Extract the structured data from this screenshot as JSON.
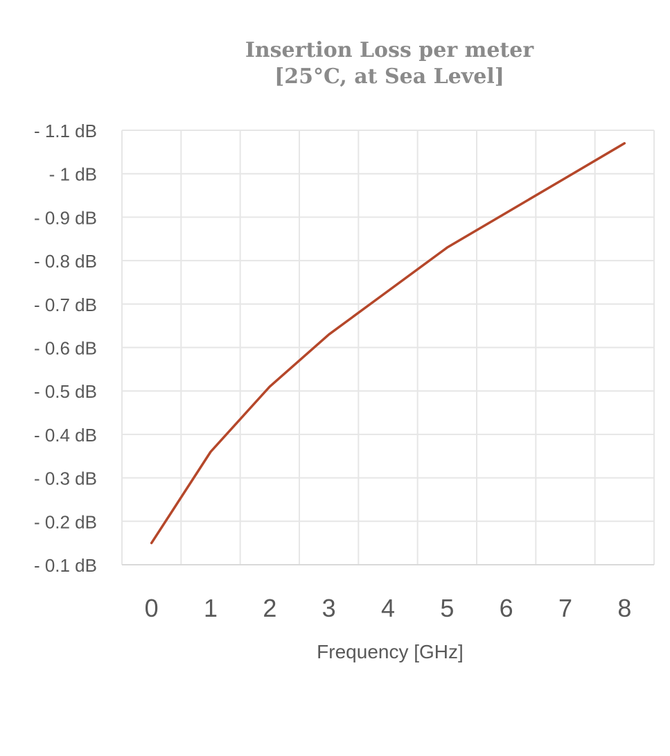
{
  "chart_data": {
    "type": "line",
    "title": [
      "Insertion Loss per meter",
      "[25°C, at Sea Level]"
    ],
    "xlabel": "Frequency [GHz]",
    "ylabel": "",
    "x": [
      0,
      1,
      2,
      3,
      4,
      5,
      6,
      7,
      8
    ],
    "series": [
      {
        "values": [
          -0.15,
          -0.36,
          -0.51,
          -0.63,
          -0.73,
          -0.83,
          -0.91,
          -0.99,
          -1.07
        ]
      }
    ],
    "xlim": [
      -0.5,
      8.5
    ],
    "ylim": [
      -0.1,
      -1.1
    ],
    "y_axis_reversed": true,
    "yticks": [
      -0.1,
      -0.2,
      -0.3,
      -0.4,
      -0.5,
      -0.6,
      -0.7,
      -0.8,
      -0.9,
      -1.0,
      -1.1
    ],
    "ytick_labels": [
      "- 0.1 dB",
      "- 0.2 dB",
      "- 0.3 dB",
      "- 0.4 dB",
      "- 0.5 dB",
      "- 0.6 dB",
      "- 0.7 dB",
      "- 0.8 dB",
      "- 0.9 dB",
      "- 1 dB",
      "- 1.1 dB"
    ],
    "xtick_labels": [
      "0",
      "1",
      "2",
      "3",
      "4",
      "5",
      "6",
      "7",
      "8"
    ],
    "grid": true,
    "legend": "none",
    "colors": {
      "line": "#b5472a",
      "grid": "#e6e6e6",
      "axis": "#d9d9d9",
      "tick_text": "#595959",
      "title": "#8a8a8a"
    }
  }
}
